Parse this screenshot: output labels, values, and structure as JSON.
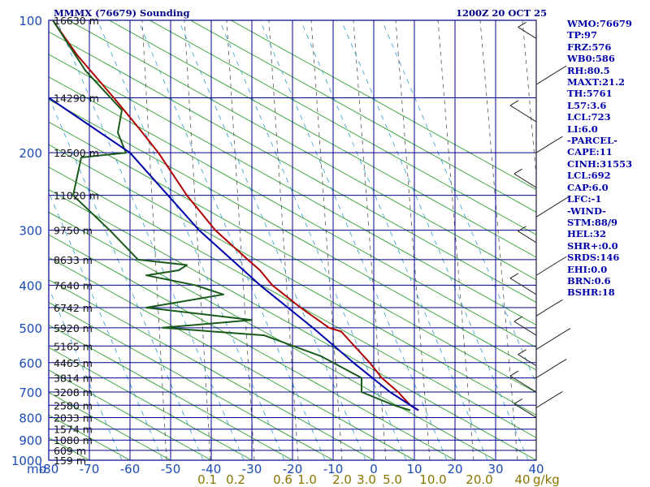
{
  "chart_data": {
    "type": "skew-t sounding",
    "title": "MMMX (76679) Sounding",
    "valid_time": "1200Z 20 OCT 25",
    "pressure_unit_label": "mb",
    "pressure_levels": [
      100,
      200,
      300,
      400,
      500,
      600,
      700,
      800,
      900,
      1000
    ],
    "pressure_range": [
      100,
      1000
    ],
    "temperature_ticks": [
      -80,
      -70,
      -60,
      -50,
      -40,
      -30,
      -20,
      -10,
      0,
      10,
      20,
      30,
      40
    ],
    "temperature_range": [
      -80,
      40
    ],
    "mixing_ratio_labels": [
      "0.1",
      "0.2",
      "0.6",
      "1.0",
      "2.0",
      "3.0",
      "5.0",
      "10.0",
      "20.0",
      "40"
    ],
    "mixing_ratio_unit": "g/kg",
    "height_labels": [
      {
        "p": 100,
        "label": "16630 m"
      },
      {
        "p": 150,
        "label": "14290 m"
      },
      {
        "p": 200,
        "label": "12500 m"
      },
      {
        "p": 250,
        "label": "11020 m"
      },
      {
        "p": 300,
        "label": "9750 m"
      },
      {
        "p": 350,
        "label": "8633 m"
      },
      {
        "p": 400,
        "label": "7640 m"
      },
      {
        "p": 450,
        "label": "6742 m"
      },
      {
        "p": 500,
        "label": "5920 m"
      },
      {
        "p": 550,
        "label": "5165 m"
      },
      {
        "p": 600,
        "label": "4465 m"
      },
      {
        "p": 650,
        "label": "3814 m"
      },
      {
        "p": 700,
        "label": "3208 m"
      },
      {
        "p": 750,
        "label": "2580 m"
      },
      {
        "p": 800,
        "label": "2033 m"
      },
      {
        "p": 850,
        "label": "1574 m"
      },
      {
        "p": 900,
        "label": "1080 m"
      },
      {
        "p": 950,
        "label": "609 m"
      },
      {
        "p": 1000,
        "label": "159 m"
      }
    ],
    "series": [
      {
        "name": "temperature",
        "color": "#b00000",
        "points": [
          [
            100,
            -79
          ],
          [
            120,
            -73
          ],
          [
            150,
            -64
          ],
          [
            175,
            -58
          ],
          [
            200,
            -53
          ],
          [
            250,
            -46
          ],
          [
            300,
            -39
          ],
          [
            350,
            -31
          ],
          [
            370,
            -28
          ],
          [
            400,
            -25
          ],
          [
            450,
            -18
          ],
          [
            500,
            -11
          ],
          [
            510,
            -8
          ],
          [
            560,
            -4
          ],
          [
            600,
            -1
          ],
          [
            650,
            2
          ],
          [
            700,
            6
          ],
          [
            750,
            9
          ],
          [
            770,
            11
          ]
        ]
      },
      {
        "name": "dewpoint",
        "color": "#1a5a1a",
        "points": [
          [
            100,
            -79
          ],
          [
            130,
            -71
          ],
          [
            160,
            -62
          ],
          [
            180,
            -63
          ],
          [
            200,
            -61
          ],
          [
            205,
            -72
          ],
          [
            250,
            -74
          ],
          [
            300,
            -65
          ],
          [
            350,
            -58
          ],
          [
            360,
            -46
          ],
          [
            370,
            -48
          ],
          [
            380,
            -56
          ],
          [
            400,
            -44
          ],
          [
            420,
            -37
          ],
          [
            450,
            -56
          ],
          [
            480,
            -30
          ],
          [
            500,
            -52
          ],
          [
            520,
            -27
          ],
          [
            580,
            -13
          ],
          [
            650,
            -3
          ],
          [
            700,
            -3
          ],
          [
            750,
            5
          ],
          [
            770,
            9
          ]
        ]
      },
      {
        "name": "parcel",
        "color": "#0000aa",
        "points": [
          [
            150,
            -80
          ],
          [
            200,
            -60
          ],
          [
            300,
            -43
          ],
          [
            400,
            -28
          ],
          [
            500,
            -15
          ],
          [
            600,
            -5
          ],
          [
            700,
            4
          ],
          [
            770,
            11
          ]
        ]
      }
    ],
    "wind_barbs_side": "right"
  },
  "indices": [
    "WMO:76679",
    "TP:97",
    "FRZ:576",
    "WB0:586",
    "RH:80.5",
    "MAXT:21.2",
    "TH:5761",
    "L57:3.6",
    "LCL:723",
    "LI:6.0",
    "-PARCEL-",
    "CAPE:11",
    "CINH:31553",
    "LCL:692",
    "CAP:6.0",
    "LFC:-1",
    "-WIND-",
    "STM:88/9",
    "HEL:32",
    "SHR+:0.0",
    "SRDS:146",
    "EHI:0.0",
    "BRN:0.6",
    "BSHR:18"
  ],
  "colors": {
    "frame": "#00008b",
    "grid": "#00008b",
    "dry_adiabat": "#2e9e2e",
    "moist_adiabat": "#555555",
    "mixing_ratio": "#3399cc",
    "mixing_label": "#8b7500",
    "pressure_label": "#1c4bb4",
    "temp_label": "#1c4bb4"
  }
}
